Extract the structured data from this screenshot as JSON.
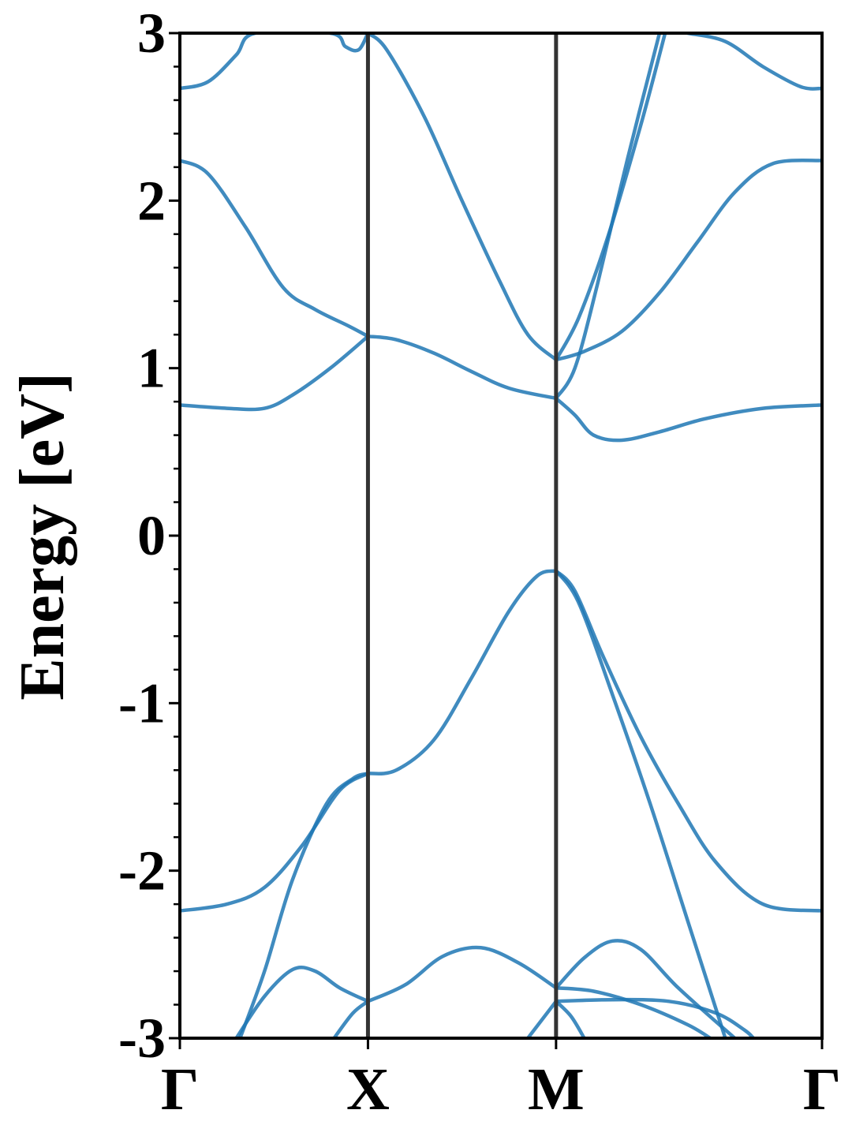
{
  "chart_data": {
    "type": "line",
    "ylabel": "Energy [eV]",
    "ylim": [
      -3,
      3
    ],
    "yticks": [
      3,
      2,
      1,
      0,
      -1,
      -2,
      -3
    ],
    "ytick_labels": [
      "3",
      "2",
      "1",
      "0",
      "-1",
      "-2",
      "-3"
    ],
    "xlim": [
      0,
      3.414
    ],
    "high_symmetry_points": [
      {
        "label": "Γ",
        "k": 0
      },
      {
        "label": "X",
        "k": 1
      },
      {
        "label": "M",
        "k": 2
      },
      {
        "label": "Γ",
        "k": 3.414
      }
    ],
    "vertical_lines_at": [
      1,
      2
    ],
    "grid": false,
    "colors": {
      "bands": "#1f77b4",
      "symmetry_lines": "#333333",
      "axes": "#000000"
    },
    "series": [
      {
        "values": [
          [
            0,
            2.67
          ],
          [
            0.15,
            2.71
          ],
          [
            0.3,
            2.87
          ],
          [
            0.4,
            3.0
          ],
          [
            0.8,
            3.0
          ],
          [
            0.88,
            2.92
          ],
          [
            0.95,
            2.9
          ],
          [
            1,
            3.0
          ]
        ]
      },
      {
        "values": [
          [
            0,
            2.24
          ],
          [
            0.15,
            2.16
          ],
          [
            0.35,
            1.84
          ],
          [
            0.55,
            1.48
          ],
          [
            0.72,
            1.35
          ],
          [
            0.9,
            1.25
          ],
          [
            1,
            1.19
          ]
        ]
      },
      {
        "values": [
          [
            0,
            0.78
          ],
          [
            0.25,
            0.76
          ],
          [
            0.45,
            0.76
          ],
          [
            0.6,
            0.84
          ],
          [
            0.8,
            1.0
          ],
          [
            1,
            1.19
          ]
        ]
      },
      {
        "values": [
          [
            1,
            3.0
          ],
          [
            1.1,
            2.9
          ],
          [
            1.3,
            2.5
          ],
          [
            1.5,
            2.0
          ],
          [
            1.7,
            1.52
          ],
          [
            1.85,
            1.2
          ],
          [
            2,
            1.05
          ]
        ]
      },
      {
        "values": [
          [
            1,
            1.19
          ],
          [
            1.15,
            1.17
          ],
          [
            1.35,
            1.09
          ],
          [
            1.55,
            0.98
          ],
          [
            1.75,
            0.88
          ],
          [
            2,
            0.82
          ]
        ]
      },
      {
        "values": [
          [
            2,
            1.05
          ],
          [
            2.15,
            1.1
          ],
          [
            2.35,
            1.22
          ],
          [
            2.55,
            1.45
          ],
          [
            2.75,
            1.75
          ],
          [
            2.95,
            2.05
          ],
          [
            3.15,
            2.22
          ],
          [
            3.414,
            2.24
          ]
        ]
      },
      {
        "values": [
          [
            2,
            0.82
          ],
          [
            2.1,
            0.72
          ],
          [
            2.2,
            0.6
          ],
          [
            2.35,
            0.57
          ],
          [
            2.55,
            0.62
          ],
          [
            2.8,
            0.7
          ],
          [
            3.1,
            0.76
          ],
          [
            3.414,
            0.78
          ]
        ]
      },
      {
        "values": [
          [
            2,
            0.82
          ],
          [
            2.1,
            1.0
          ],
          [
            2.22,
            1.5
          ],
          [
            2.38,
            2.25
          ],
          [
            2.55,
            3.0
          ]
        ]
      },
      {
        "values": [
          [
            2,
            1.05
          ],
          [
            2.12,
            1.3
          ],
          [
            2.28,
            1.8
          ],
          [
            2.45,
            2.45
          ],
          [
            2.58,
            3.0
          ]
        ]
      },
      {
        "values": [
          [
            2.7,
            3.0
          ],
          [
            2.9,
            2.95
          ],
          [
            3.1,
            2.8
          ],
          [
            3.3,
            2.68
          ],
          [
            3.414,
            2.67
          ]
        ]
      },
      {
        "values": [
          [
            0,
            -2.24
          ],
          [
            0.25,
            -2.2
          ],
          [
            0.45,
            -2.1
          ],
          [
            0.65,
            -1.85
          ],
          [
            0.85,
            -1.52
          ],
          [
            1,
            -1.42
          ]
        ]
      },
      {
        "values": [
          [
            0.32,
            -3.0
          ],
          [
            0.45,
            -2.6
          ],
          [
            0.6,
            -2.05
          ],
          [
            0.78,
            -1.6
          ],
          [
            0.92,
            -1.45
          ],
          [
            1,
            -1.42
          ]
        ]
      },
      {
        "values": [
          [
            1,
            -1.42
          ],
          [
            1.15,
            -1.4
          ],
          [
            1.35,
            -1.22
          ],
          [
            1.55,
            -0.85
          ],
          [
            1.75,
            -0.45
          ],
          [
            1.9,
            -0.24
          ],
          [
            2,
            -0.21
          ]
        ]
      },
      {
        "values": [
          [
            2,
            -0.21
          ],
          [
            2.1,
            -0.33
          ],
          [
            2.25,
            -0.72
          ],
          [
            2.45,
            -1.2
          ],
          [
            2.65,
            -1.6
          ],
          [
            2.85,
            -1.95
          ],
          [
            3.1,
            -2.2
          ],
          [
            3.414,
            -2.24
          ]
        ]
      },
      {
        "values": [
          [
            2,
            -0.21
          ],
          [
            2.12,
            -0.4
          ],
          [
            2.3,
            -0.95
          ],
          [
            2.5,
            -1.6
          ],
          [
            2.7,
            -2.3
          ],
          [
            2.9,
            -3.0
          ]
        ]
      },
      {
        "values": [
          [
            0.3,
            -3.0
          ],
          [
            0.45,
            -2.75
          ],
          [
            0.6,
            -2.59
          ],
          [
            0.72,
            -2.6
          ],
          [
            0.85,
            -2.7
          ],
          [
            1,
            -2.78
          ]
        ]
      },
      {
        "values": [
          [
            0.82,
            -3.0
          ],
          [
            0.92,
            -2.85
          ],
          [
            1,
            -2.78
          ]
        ]
      },
      {
        "values": [
          [
            1,
            -2.78
          ],
          [
            1.2,
            -2.68
          ],
          [
            1.4,
            -2.51
          ],
          [
            1.6,
            -2.46
          ],
          [
            1.8,
            -2.55
          ],
          [
            2,
            -2.7
          ]
        ]
      },
      {
        "values": [
          [
            1.85,
            -3.0
          ],
          [
            2,
            -2.78
          ]
        ]
      },
      {
        "values": [
          [
            2,
            -2.7
          ],
          [
            2.15,
            -2.52
          ],
          [
            2.3,
            -2.42
          ],
          [
            2.45,
            -2.47
          ],
          [
            2.65,
            -2.7
          ],
          [
            2.95,
            -3.0
          ]
        ]
      },
      {
        "values": [
          [
            2,
            -2.78
          ],
          [
            2.3,
            -2.77
          ],
          [
            2.6,
            -2.78
          ],
          [
            2.85,
            -2.85
          ],
          [
            3.0,
            -2.95
          ],
          [
            3.05,
            -3.0
          ]
        ]
      },
      {
        "values": [
          [
            2,
            -2.7
          ],
          [
            2.2,
            -2.72
          ],
          [
            2.45,
            -2.8
          ],
          [
            2.7,
            -2.92
          ],
          [
            2.82,
            -3.0
          ]
        ]
      },
      {
        "values": [
          [
            2,
            -2.78
          ],
          [
            2.08,
            -2.87
          ],
          [
            2.15,
            -3.0
          ]
        ]
      }
    ]
  }
}
